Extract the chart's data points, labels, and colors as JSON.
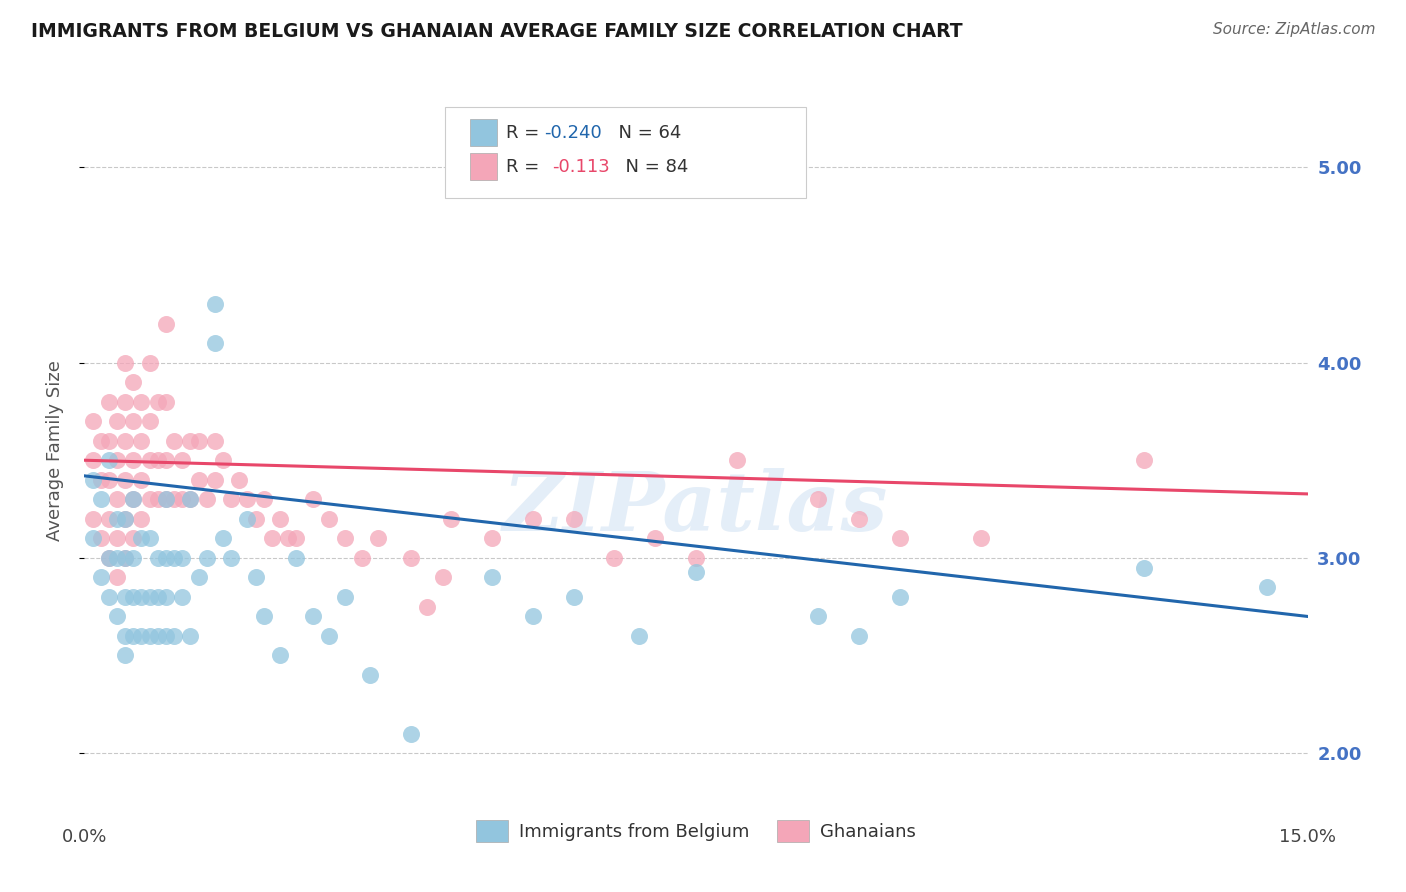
{
  "title": "IMMIGRANTS FROM BELGIUM VS GHANAIAN AVERAGE FAMILY SIZE CORRELATION CHART",
  "source": "Source: ZipAtlas.com",
  "ylabel": "Average Family Size",
  "xlim": [
    0.0,
    0.15
  ],
  "ylim": [
    1.7,
    5.4
  ],
  "yticks_right": [
    2.0,
    3.0,
    4.0,
    5.0
  ],
  "ytick_labels_right": [
    "2.00",
    "3.00",
    "4.00",
    "5.00"
  ],
  "legend_blue_label": "Immigrants from Belgium",
  "legend_pink_label": "Ghanaians",
  "blue_color": "#92c5de",
  "pink_color": "#f4a6b8",
  "blue_line_color": "#2166ac",
  "pink_line_color": "#e8476a",
  "right_tick_color": "#4472c4",
  "watermark": "ZIPatlas",
  "background_color": "#ffffff",
  "blue_intercept": 3.42,
  "blue_slope": -4.8,
  "pink_intercept": 3.5,
  "pink_slope": -1.15,
  "blue_scatter_x": [
    0.001,
    0.001,
    0.002,
    0.002,
    0.003,
    0.003,
    0.003,
    0.004,
    0.004,
    0.004,
    0.005,
    0.005,
    0.005,
    0.005,
    0.005,
    0.006,
    0.006,
    0.006,
    0.006,
    0.007,
    0.007,
    0.007,
    0.008,
    0.008,
    0.008,
    0.009,
    0.009,
    0.009,
    0.01,
    0.01,
    0.01,
    0.01,
    0.011,
    0.011,
    0.012,
    0.012,
    0.013,
    0.013,
    0.014,
    0.015,
    0.016,
    0.016,
    0.017,
    0.018,
    0.02,
    0.021,
    0.022,
    0.024,
    0.026,
    0.028,
    0.03,
    0.032,
    0.035,
    0.04,
    0.05,
    0.055,
    0.06,
    0.068,
    0.075,
    0.09,
    0.095,
    0.1,
    0.13,
    0.145
  ],
  "blue_scatter_y": [
    3.1,
    3.4,
    2.9,
    3.3,
    2.8,
    3.0,
    3.5,
    2.7,
    3.0,
    3.2,
    2.6,
    2.8,
    3.0,
    3.2,
    2.5,
    2.6,
    2.8,
    3.0,
    3.3,
    2.6,
    2.8,
    3.1,
    2.6,
    2.8,
    3.1,
    2.6,
    2.8,
    3.0,
    2.6,
    2.8,
    3.0,
    3.3,
    2.6,
    3.0,
    2.8,
    3.0,
    2.6,
    3.3,
    2.9,
    3.0,
    4.3,
    4.1,
    3.1,
    3.0,
    3.2,
    2.9,
    2.7,
    2.5,
    3.0,
    2.7,
    2.6,
    2.8,
    2.4,
    2.1,
    2.9,
    2.7,
    2.8,
    2.6,
    2.93,
    2.7,
    2.6,
    2.8,
    2.95,
    2.85
  ],
  "pink_scatter_x": [
    0.001,
    0.001,
    0.001,
    0.002,
    0.002,
    0.002,
    0.003,
    0.003,
    0.003,
    0.003,
    0.003,
    0.004,
    0.004,
    0.004,
    0.004,
    0.004,
    0.005,
    0.005,
    0.005,
    0.005,
    0.005,
    0.005,
    0.006,
    0.006,
    0.006,
    0.006,
    0.006,
    0.007,
    0.007,
    0.007,
    0.007,
    0.008,
    0.008,
    0.008,
    0.008,
    0.009,
    0.009,
    0.009,
    0.01,
    0.01,
    0.01,
    0.01,
    0.011,
    0.011,
    0.012,
    0.012,
    0.013,
    0.013,
    0.014,
    0.014,
    0.015,
    0.016,
    0.016,
    0.017,
    0.018,
    0.019,
    0.02,
    0.021,
    0.022,
    0.023,
    0.024,
    0.025,
    0.026,
    0.028,
    0.03,
    0.032,
    0.034,
    0.036,
    0.04,
    0.042,
    0.044,
    0.045,
    0.05,
    0.055,
    0.06,
    0.065,
    0.07,
    0.075,
    0.08,
    0.09,
    0.095,
    0.1,
    0.11,
    0.13
  ],
  "pink_scatter_y": [
    3.2,
    3.5,
    3.7,
    3.1,
    3.4,
    3.6,
    3.0,
    3.2,
    3.4,
    3.6,
    3.8,
    2.9,
    3.1,
    3.3,
    3.5,
    3.7,
    3.0,
    3.2,
    3.4,
    3.6,
    3.8,
    4.0,
    3.1,
    3.3,
    3.5,
    3.7,
    3.9,
    3.2,
    3.4,
    3.6,
    3.8,
    3.3,
    3.5,
    3.7,
    4.0,
    3.3,
    3.5,
    3.8,
    3.3,
    3.5,
    3.8,
    4.2,
    3.3,
    3.6,
    3.3,
    3.5,
    3.3,
    3.6,
    3.4,
    3.6,
    3.3,
    3.4,
    3.6,
    3.5,
    3.3,
    3.4,
    3.3,
    3.2,
    3.3,
    3.1,
    3.2,
    3.1,
    3.1,
    3.3,
    3.2,
    3.1,
    3.0,
    3.1,
    3.0,
    2.75,
    2.9,
    3.2,
    3.1,
    3.2,
    3.2,
    3.0,
    3.1,
    3.0,
    3.5,
    3.3,
    3.2,
    3.1,
    3.1,
    3.5
  ]
}
